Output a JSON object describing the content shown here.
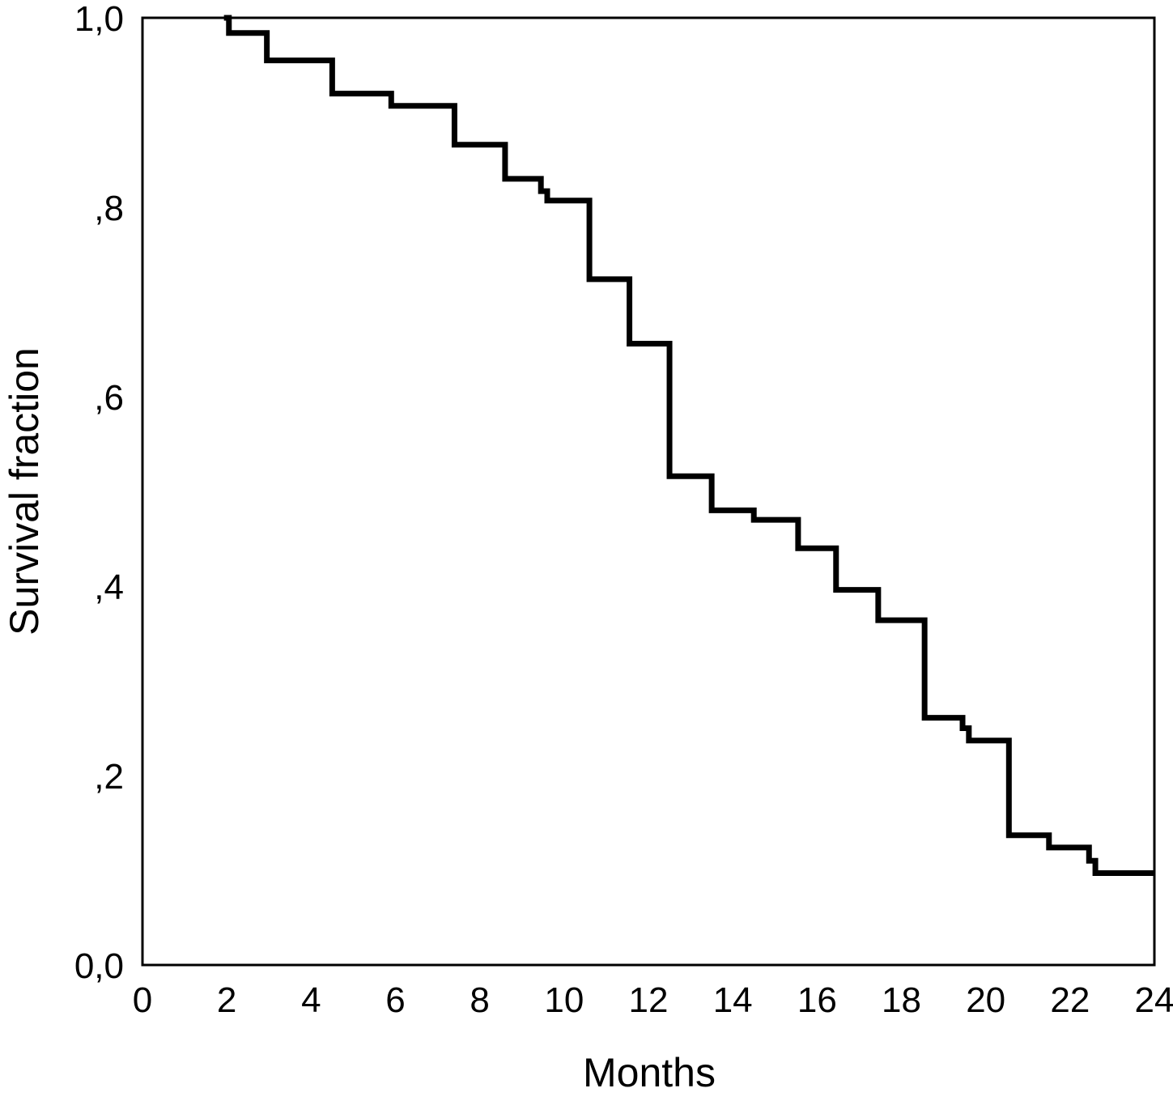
{
  "chart_data": {
    "type": "line",
    "step": true,
    "title": "",
    "xlabel": "Months",
    "ylabel": "Survival fraction",
    "xlim": [
      0,
      24
    ],
    "ylim": [
      0,
      1
    ],
    "x_ticks": [
      0,
      2,
      4,
      6,
      8,
      10,
      12,
      14,
      16,
      18,
      20,
      22,
      24
    ],
    "x_tick_labels": [
      "0",
      "2",
      "4",
      "6",
      "8",
      "10",
      "12",
      "14",
      "16",
      "18",
      "20",
      "22",
      "24"
    ],
    "y_ticks": [
      0,
      0.2,
      0.4,
      0.6,
      0.8,
      1.0
    ],
    "y_tick_labels": [
      "0,0",
      ",2",
      ",4",
      ",6",
      ",8",
      "1,0"
    ],
    "grid": false,
    "series": [
      {
        "color": "#000000",
        "points": [
          {
            "x": 2.0,
            "y": 1.0
          },
          {
            "x": 2.05,
            "y": 0.984
          },
          {
            "x": 2.95,
            "y": 0.955
          },
          {
            "x": 4.5,
            "y": 0.92
          },
          {
            "x": 5.9,
            "y": 0.907
          },
          {
            "x": 7.4,
            "y": 0.866
          },
          {
            "x": 8.6,
            "y": 0.83
          },
          {
            "x": 9.45,
            "y": 0.817
          },
          {
            "x": 9.6,
            "y": 0.807
          },
          {
            "x": 10.6,
            "y": 0.724
          },
          {
            "x": 11.55,
            "y": 0.656
          },
          {
            "x": 12.5,
            "y": 0.516
          },
          {
            "x": 13.5,
            "y": 0.48
          },
          {
            "x": 14.5,
            "y": 0.47
          },
          {
            "x": 15.55,
            "y": 0.44
          },
          {
            "x": 16.45,
            "y": 0.396
          },
          {
            "x": 17.45,
            "y": 0.364
          },
          {
            "x": 18.55,
            "y": 0.261
          },
          {
            "x": 19.45,
            "y": 0.25
          },
          {
            "x": 19.6,
            "y": 0.237
          },
          {
            "x": 20.55,
            "y": 0.137
          },
          {
            "x": 21.5,
            "y": 0.124
          },
          {
            "x": 22.45,
            "y": 0.11
          },
          {
            "x": 22.6,
            "y": 0.097
          },
          {
            "x": 23.95,
            "y": 0.097
          }
        ]
      }
    ]
  }
}
